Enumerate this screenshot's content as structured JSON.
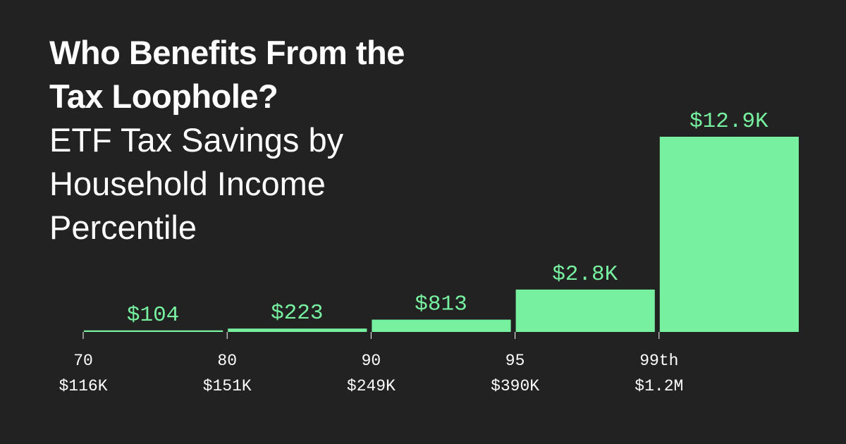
{
  "chart_data": {
    "type": "bar",
    "title": "Who Benefits From the Tax Loophole?",
    "subtitle": "ETF Tax Savings by Household Income Percentile",
    "categories": [
      "70",
      "80",
      "90",
      "95",
      "99th"
    ],
    "category_incomes": [
      "$116K",
      "$151K",
      "$249K",
      "$390K",
      "$1.2M"
    ],
    "values": [
      104,
      223,
      813,
      2800,
      12900
    ],
    "value_labels": [
      "$104",
      "$223",
      "$813",
      "$2.8K",
      "$12.9K"
    ],
    "color": "#77f0a0"
  }
}
